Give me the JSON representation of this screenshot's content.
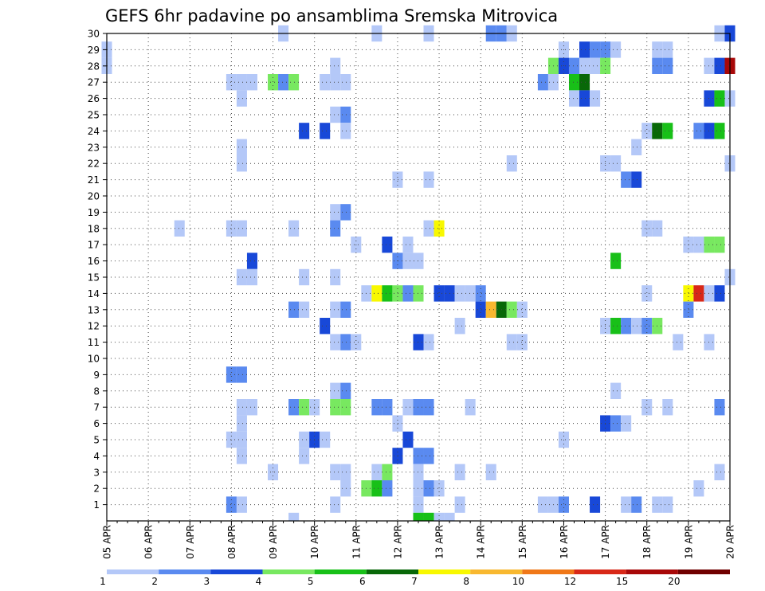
{
  "chart_data": {
    "type": "heatmap",
    "title": "GEFS 6hr padavine po ansamblima Sremska Mitrovica",
    "x_ticks": [
      "05 APR",
      "06 APR",
      "07 APR",
      "08 APR",
      "09 APR",
      "10 APR",
      "11 APR",
      "12 APR",
      "13 APR",
      "14 APR",
      "15 APR",
      "16 APR",
      "17 APR",
      "18 APR",
      "19 APR",
      "20 APR"
    ],
    "y_ticks": [
      "1",
      "2",
      "3",
      "4",
      "5",
      "6",
      "7",
      "8",
      "9",
      "10",
      "11",
      "12",
      "13",
      "14",
      "15",
      "16",
      "17",
      "18",
      "19",
      "20",
      "21",
      "22",
      "23",
      "24",
      "25",
      "26",
      "27",
      "28",
      "29",
      "30"
    ],
    "x_range": [
      0,
      60
    ],
    "y_range": [
      0,
      30
    ],
    "x_unit": "6-hour step from 05 APR 00Z",
    "grid": true,
    "legend_labels": [
      "1",
      "2",
      "3",
      "4",
      "5",
      "6",
      "7",
      "8",
      "10",
      "12",
      "15",
      "20"
    ],
    "legend_colors": [
      "#b4c8f8",
      "#5a8af0",
      "#1848d8",
      "#78e860",
      "#18c018",
      "#086808",
      "#f8f800",
      "#f8b830",
      "#f07818",
      "#d82818",
      "#a80808",
      "#700000"
    ],
    "cells": [
      [
        17,
        30,
        1
      ],
      [
        26,
        30,
        1
      ],
      [
        31,
        30,
        1
      ],
      [
        37,
        30,
        2
      ],
      [
        38,
        30,
        2
      ],
      [
        39,
        30,
        1
      ],
      [
        59,
        30,
        1
      ],
      [
        60,
        30,
        3
      ],
      [
        0,
        29,
        1
      ],
      [
        44,
        29,
        1
      ],
      [
        46,
        29,
        3
      ],
      [
        47,
        29,
        2
      ],
      [
        48,
        29,
        2
      ],
      [
        49,
        29,
        1
      ],
      [
        53,
        29,
        1
      ],
      [
        54,
        29,
        1
      ],
      [
        0,
        28,
        1
      ],
      [
        22,
        28,
        1
      ],
      [
        43,
        28,
        4
      ],
      [
        44,
        28,
        3
      ],
      [
        45,
        28,
        2
      ],
      [
        46,
        28,
        1
      ],
      [
        47,
        28,
        1
      ],
      [
        48,
        28,
        4
      ],
      [
        53,
        28,
        2
      ],
      [
        54,
        28,
        2
      ],
      [
        58,
        28,
        1
      ],
      [
        59,
        28,
        3
      ],
      [
        60,
        28,
        11
      ],
      [
        12,
        27,
        1
      ],
      [
        13,
        27,
        1
      ],
      [
        14,
        27,
        1
      ],
      [
        16,
        27,
        4
      ],
      [
        17,
        27,
        2
      ],
      [
        18,
        27,
        4
      ],
      [
        21,
        27,
        1
      ],
      [
        22,
        27,
        1
      ],
      [
        23,
        27,
        1
      ],
      [
        42,
        27,
        2
      ],
      [
        43,
        27,
        1
      ],
      [
        45,
        27,
        5
      ],
      [
        46,
        27,
        6
      ],
      [
        13,
        26,
        1
      ],
      [
        45,
        26,
        1
      ],
      [
        46,
        26,
        3
      ],
      [
        47,
        26,
        1
      ],
      [
        58,
        26,
        3
      ],
      [
        59,
        26,
        5
      ],
      [
        60,
        26,
        1
      ],
      [
        22,
        25,
        1
      ],
      [
        23,
        25,
        2
      ],
      [
        19,
        24,
        3
      ],
      [
        21,
        24,
        3
      ],
      [
        23,
        24,
        1
      ],
      [
        52,
        24,
        1
      ],
      [
        53,
        24,
        6
      ],
      [
        54,
        24,
        5
      ],
      [
        57,
        24,
        2
      ],
      [
        58,
        24,
        3
      ],
      [
        59,
        24,
        5
      ],
      [
        13,
        23,
        1
      ],
      [
        51,
        23,
        1
      ],
      [
        13,
        22,
        1
      ],
      [
        39,
        22,
        1
      ],
      [
        48,
        22,
        1
      ],
      [
        49,
        22,
        1
      ],
      [
        60,
        22,
        1
      ],
      [
        28,
        21,
        1
      ],
      [
        31,
        21,
        1
      ],
      [
        50,
        21,
        2
      ],
      [
        51,
        21,
        3
      ],
      [
        22,
        19,
        1
      ],
      [
        23,
        19,
        2
      ],
      [
        7,
        18,
        1
      ],
      [
        12,
        18,
        1
      ],
      [
        13,
        18,
        1
      ],
      [
        18,
        18,
        1
      ],
      [
        22,
        18,
        2
      ],
      [
        31,
        18,
        1
      ],
      [
        32,
        18,
        7
      ],
      [
        52,
        18,
        1
      ],
      [
        53,
        18,
        1
      ],
      [
        24,
        17,
        1
      ],
      [
        27,
        17,
        3
      ],
      [
        29,
        17,
        1
      ],
      [
        56,
        17,
        1
      ],
      [
        57,
        17,
        1
      ],
      [
        58,
        17,
        4
      ],
      [
        59,
        17,
        4
      ],
      [
        14,
        16,
        3
      ],
      [
        28,
        16,
        2
      ],
      [
        29,
        16,
        1
      ],
      [
        30,
        16,
        1
      ],
      [
        49,
        16,
        5
      ],
      [
        13,
        15,
        1
      ],
      [
        14,
        15,
        1
      ],
      [
        19,
        15,
        1
      ],
      [
        22,
        15,
        1
      ],
      [
        60,
        15,
        1
      ],
      [
        25,
        14,
        1
      ],
      [
        26,
        14,
        7
      ],
      [
        27,
        14,
        5
      ],
      [
        28,
        14,
        4
      ],
      [
        29,
        14,
        2
      ],
      [
        30,
        14,
        4
      ],
      [
        32,
        14,
        3
      ],
      [
        33,
        14,
        3
      ],
      [
        34,
        14,
        1
      ],
      [
        35,
        14,
        1
      ],
      [
        36,
        14,
        2
      ],
      [
        52,
        14,
        1
      ],
      [
        56,
        14,
        7
      ],
      [
        57,
        14,
        10
      ],
      [
        58,
        14,
        1
      ],
      [
        59,
        14,
        3
      ],
      [
        18,
        13,
        2
      ],
      [
        19,
        13,
        1
      ],
      [
        22,
        13,
        1
      ],
      [
        23,
        13,
        2
      ],
      [
        36,
        13,
        3
      ],
      [
        37,
        13,
        8
      ],
      [
        38,
        13,
        6
      ],
      [
        39,
        13,
        4
      ],
      [
        40,
        13,
        1
      ],
      [
        56,
        13,
        2
      ],
      [
        21,
        12,
        3
      ],
      [
        34,
        12,
        1
      ],
      [
        48,
        12,
        1
      ],
      [
        49,
        12,
        5
      ],
      [
        50,
        12,
        2
      ],
      [
        51,
        12,
        1
      ],
      [
        52,
        12,
        2
      ],
      [
        53,
        12,
        4
      ],
      [
        22,
        11,
        1
      ],
      [
        23,
        11,
        2
      ],
      [
        24,
        11,
        1
      ],
      [
        30,
        11,
        3
      ],
      [
        31,
        11,
        1
      ],
      [
        39,
        11,
        1
      ],
      [
        40,
        11,
        1
      ],
      [
        55,
        11,
        1
      ],
      [
        58,
        11,
        1
      ],
      [
        12,
        9,
        2
      ],
      [
        13,
        9,
        2
      ],
      [
        22,
        8,
        1
      ],
      [
        23,
        8,
        2
      ],
      [
        49,
        8,
        1
      ],
      [
        13,
        7,
        1
      ],
      [
        14,
        7,
        1
      ],
      [
        18,
        7,
        2
      ],
      [
        19,
        7,
        4
      ],
      [
        20,
        7,
        1
      ],
      [
        22,
        7,
        4
      ],
      [
        23,
        7,
        4
      ],
      [
        26,
        7,
        2
      ],
      [
        27,
        7,
        2
      ],
      [
        29,
        7,
        1
      ],
      [
        30,
        7,
        2
      ],
      [
        31,
        7,
        2
      ],
      [
        35,
        7,
        1
      ],
      [
        52,
        7,
        1
      ],
      [
        54,
        7,
        1
      ],
      [
        59,
        7,
        2
      ],
      [
        13,
        6,
        1
      ],
      [
        28,
        6,
        1
      ],
      [
        48,
        6,
        3
      ],
      [
        49,
        6,
        2
      ],
      [
        50,
        6,
        1
      ],
      [
        12,
        5,
        1
      ],
      [
        13,
        5,
        1
      ],
      [
        19,
        5,
        1
      ],
      [
        20,
        5,
        3
      ],
      [
        21,
        5,
        1
      ],
      [
        29,
        5,
        3
      ],
      [
        44,
        5,
        1
      ],
      [
        13,
        4,
        1
      ],
      [
        19,
        4,
        1
      ],
      [
        28,
        4,
        3
      ],
      [
        30,
        4,
        2
      ],
      [
        31,
        4,
        2
      ],
      [
        16,
        3,
        1
      ],
      [
        22,
        3,
        1
      ],
      [
        23,
        3,
        1
      ],
      [
        26,
        3,
        1
      ],
      [
        27,
        3,
        4
      ],
      [
        30,
        3,
        1
      ],
      [
        34,
        3,
        1
      ],
      [
        37,
        3,
        1
      ],
      [
        59,
        3,
        1
      ],
      [
        23,
        2,
        1
      ],
      [
        25,
        2,
        4
      ],
      [
        26,
        2,
        5
      ],
      [
        27,
        2,
        2
      ],
      [
        30,
        2,
        1
      ],
      [
        31,
        2,
        2
      ],
      [
        32,
        2,
        1
      ],
      [
        57,
        2,
        1
      ],
      [
        12,
        1,
        2
      ],
      [
        13,
        1,
        1
      ],
      [
        22,
        1,
        1
      ],
      [
        30,
        1,
        1
      ],
      [
        34,
        1,
        1
      ],
      [
        42,
        1,
        1
      ],
      [
        43,
        1,
        1
      ],
      [
        44,
        1,
        2
      ],
      [
        47,
        1,
        3
      ],
      [
        50,
        1,
        1
      ],
      [
        51,
        1,
        2
      ],
      [
        53,
        1,
        1
      ],
      [
        54,
        1,
        1
      ],
      [
        18,
        0,
        1
      ],
      [
        30,
        0,
        5
      ],
      [
        31,
        0,
        5
      ],
      [
        32,
        0,
        1
      ],
      [
        33,
        0,
        1
      ]
    ]
  }
}
